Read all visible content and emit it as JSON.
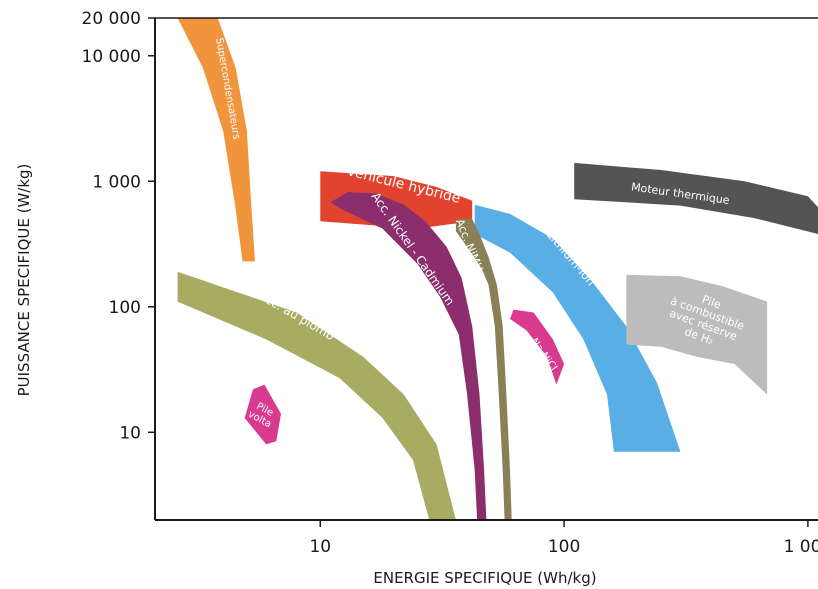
{
  "chart_data": {
    "type": "area",
    "title": "",
    "xlabel": "ENERGIE SPECIFIQUE (Wh/kg)",
    "ylabel": "PUISSANCE SPECIFIQUE (W/kg)",
    "xscale": "log",
    "yscale": "log",
    "xlim": [
      2.1,
      1100
    ],
    "ylim": [
      2,
      20000
    ],
    "x_ticks": [
      {
        "value": 10,
        "label": "10"
      },
      {
        "value": 100,
        "label": "100"
      },
      {
        "value": 1000,
        "label": "1 000"
      }
    ],
    "y_ticks": [
      {
        "value": 10,
        "label": "10"
      },
      {
        "value": 100,
        "label": "100"
      },
      {
        "value": 1000,
        "label": "1 000"
      },
      {
        "value": 10000,
        "label": "10 000"
      },
      {
        "value": 20000,
        "label": "20 000"
      }
    ],
    "grid": false,
    "regions": [
      {
        "name": "Supercondensateurs",
        "color": "#f0943e",
        "label_at": [
          4.2,
          5500
        ],
        "label_angle": 80,
        "label_size": 10,
        "polygon": [
          [
            2.6,
            20000
          ],
          [
            3.8,
            20000
          ],
          [
            4.5,
            8000
          ],
          [
            5.0,
            2500
          ],
          [
            5.2,
            700
          ],
          [
            5.4,
            230
          ],
          [
            4.8,
            230
          ],
          [
            4.5,
            600
          ],
          [
            4.0,
            2500
          ],
          [
            3.3,
            8000
          ],
          [
            2.6,
            20000
          ]
        ]
      },
      {
        "name": "Véhicule hybride",
        "color": "#e2432e",
        "label_at": [
          22,
          950
        ],
        "label_angle": 14,
        "label_size": 14,
        "polygon": [
          [
            10,
            1200
          ],
          [
            20,
            1100
          ],
          [
            30,
            900
          ],
          [
            42,
            700
          ],
          [
            42,
            480
          ],
          [
            25,
            420
          ],
          [
            10,
            480
          ]
        ]
      },
      {
        "name": "Acc. Lithium-Ion",
        "color": "#5aaee6",
        "label_at": [
          98,
          300
        ],
        "label_angle": 50,
        "label_size": 12,
        "polygon": [
          [
            43,
            650
          ],
          [
            60,
            550
          ],
          [
            90,
            350
          ],
          [
            130,
            160
          ],
          [
            180,
            70
          ],
          [
            240,
            25
          ],
          [
            300,
            7
          ],
          [
            160,
            7
          ],
          [
            150,
            20
          ],
          [
            120,
            55
          ],
          [
            90,
            130
          ],
          [
            60,
            270
          ],
          [
            43,
            380
          ]
        ]
      },
      {
        "name": "Acc. au plomb",
        "color": "#a8ab62",
        "label_at": [
          8,
          85
        ],
        "label_angle": 30,
        "label_size": 12,
        "polygon": [
          [
            2.6,
            190
          ],
          [
            8,
            90
          ],
          [
            15,
            40
          ],
          [
            22,
            20
          ],
          [
            30,
            8
          ],
          [
            36,
            2
          ],
          [
            28,
            2
          ],
          [
            24,
            6
          ],
          [
            18,
            13
          ],
          [
            12,
            27
          ],
          [
            6,
            55
          ],
          [
            2.6,
            110
          ]
        ]
      },
      {
        "name": "Acc. Nickel - Cadmium",
        "color": "#8c2d6e",
        "label_at": [
          24,
          290
        ],
        "label_angle": 55,
        "label_size": 12,
        "polygon": [
          [
            13,
            820
          ],
          [
            17,
            800
          ],
          [
            22,
            650
          ],
          [
            27,
            480
          ],
          [
            33,
            300
          ],
          [
            38,
            170
          ],
          [
            42,
            70
          ],
          [
            45,
            20
          ],
          [
            47,
            5
          ],
          [
            48,
            2
          ],
          [
            44,
            2
          ],
          [
            43,
            5
          ],
          [
            40,
            20
          ],
          [
            37,
            60
          ],
          [
            31,
            120
          ],
          [
            25,
            220
          ],
          [
            18,
            420
          ],
          [
            12,
            610
          ],
          [
            11,
            680
          ]
        ]
      },
      {
        "name": "Acc. NiMH",
        "color": "#8b7f58",
        "label_at": [
          41,
          310
        ],
        "label_angle": 68,
        "label_size": 11,
        "polygon": [
          [
            36,
            500
          ],
          [
            42,
            500
          ],
          [
            45,
            380
          ],
          [
            49,
            250
          ],
          [
            53,
            150
          ],
          [
            56,
            70
          ],
          [
            58,
            20
          ],
          [
            60,
            5
          ],
          [
            61,
            2
          ],
          [
            57,
            2
          ],
          [
            56,
            5
          ],
          [
            54,
            20
          ],
          [
            52,
            70
          ],
          [
            49,
            150
          ],
          [
            46,
            200
          ],
          [
            40,
            300
          ],
          [
            36,
            400
          ]
        ]
      },
      {
        "name": "Na-NiCl",
        "color": "#da3a8e",
        "label_at": [
          83,
          42
        ],
        "label_angle": 55,
        "label_size": 10,
        "polygon": [
          [
            62,
            95
          ],
          [
            75,
            90
          ],
          [
            90,
            55
          ],
          [
            100,
            35
          ],
          [
            93,
            24
          ],
          [
            85,
            40
          ],
          [
            70,
            65
          ],
          [
            60,
            80
          ]
        ]
      },
      {
        "name": "Moteur thermique",
        "color": "#545454",
        "label_at": [
          300,
          800
        ],
        "label_angle": 8,
        "label_size": 11,
        "polygon": [
          [
            110,
            1400
          ],
          [
            250,
            1230
          ],
          [
            550,
            1000
          ],
          [
            1000,
            760
          ],
          [
            1100,
            620
          ],
          [
            1100,
            380
          ],
          [
            600,
            510
          ],
          [
            300,
            640
          ],
          [
            110,
            720
          ]
        ]
      },
      {
        "name": "Pile à combustible avec réserve de H2",
        "color": "#bcbcbc",
        "label_lines": [
          "Pile",
          "à combustible",
          "avec réserve",
          "de H₂"
        ],
        "label_at": [
          380,
          80
        ],
        "label_angle": 20,
        "label_size": 11,
        "polygon": [
          [
            180,
            180
          ],
          [
            300,
            175
          ],
          [
            450,
            145
          ],
          [
            680,
            110
          ],
          [
            680,
            20
          ],
          [
            500,
            35
          ],
          [
            350,
            40
          ],
          [
            250,
            48
          ],
          [
            180,
            50
          ]
        ]
      },
      {
        "name": "Pile volta",
        "color": "#da3a8e",
        "label_lines": [
          "Pile",
          "volta"
        ],
        "label_at": [
          5.8,
          14
        ],
        "label_angle": 28,
        "label_size": 10,
        "polygon": [
          [
            5.3,
            22
          ],
          [
            5.9,
            24
          ],
          [
            6.9,
            14
          ],
          [
            6.6,
            8.5
          ],
          [
            6.0,
            8
          ],
          [
            4.9,
            13
          ]
        ]
      }
    ]
  }
}
